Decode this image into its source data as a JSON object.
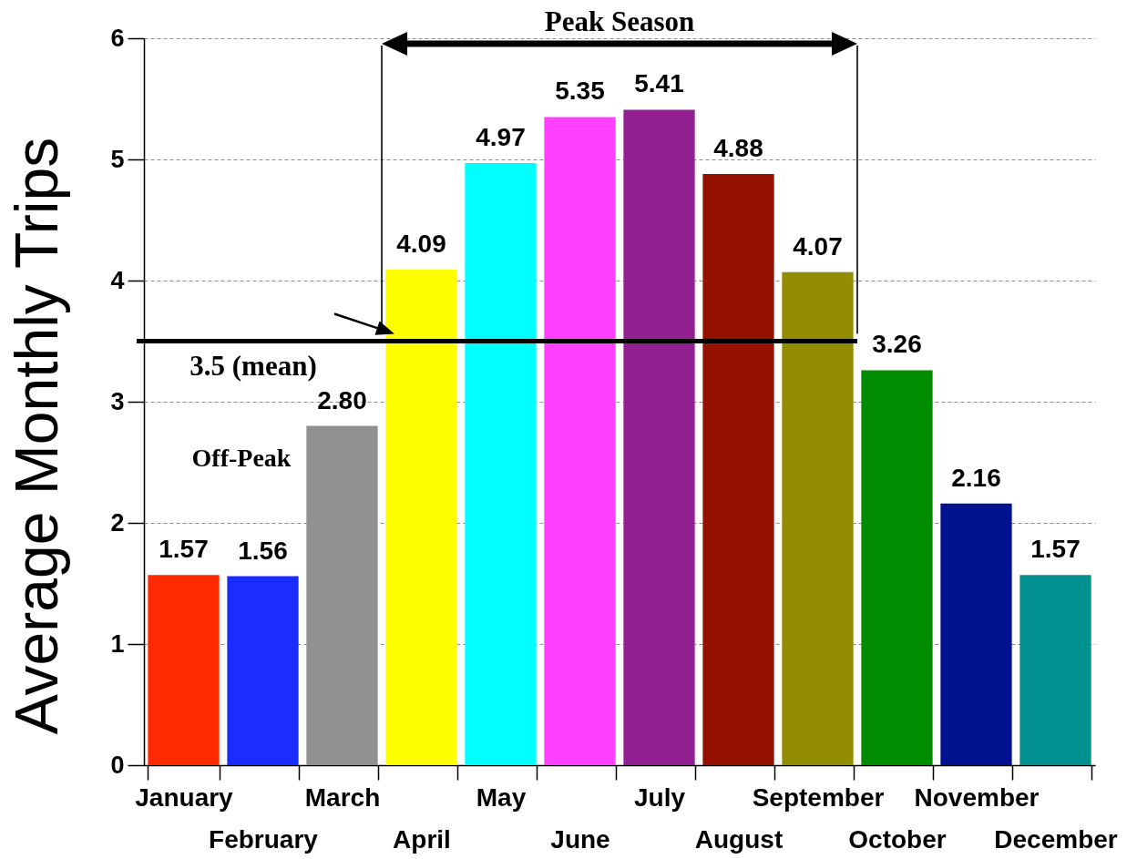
{
  "chart_data": {
    "type": "bar",
    "ylabel": "Average Monthly Trips",
    "categories": [
      "January",
      "February",
      "March",
      "April",
      "May",
      "June",
      "July",
      "August",
      "September",
      "October",
      "November",
      "December"
    ],
    "values": [
      1.57,
      1.56,
      2.8,
      4.09,
      4.97,
      5.35,
      5.41,
      4.88,
      4.07,
      3.26,
      2.16,
      1.57
    ],
    "colors": [
      "#ff2a00",
      "#1a2cff",
      "#919191",
      "#ffff00",
      "#00ffff",
      "#ff40ff",
      "#922090",
      "#961200",
      "#918c00",
      "#008c00",
      "#001290",
      "#009090"
    ],
    "value_labels": [
      "1.57",
      "1.56",
      "2.80",
      "4.09",
      "4.97",
      "5.35",
      "5.41",
      "4.88",
      "4.07",
      "3.26",
      "2.16",
      "1.57"
    ],
    "ylim": [
      0,
      6
    ],
    "yticks": [
      0,
      1,
      2,
      3,
      4,
      5,
      6
    ],
    "grid": "y",
    "ref_lines": [
      {
        "axis": "y",
        "value": 3.5,
        "label": "3.5 (mean)",
        "color": "#000000"
      }
    ],
    "annotations": [
      "Peak Season",
      "Off-Peak"
    ]
  }
}
